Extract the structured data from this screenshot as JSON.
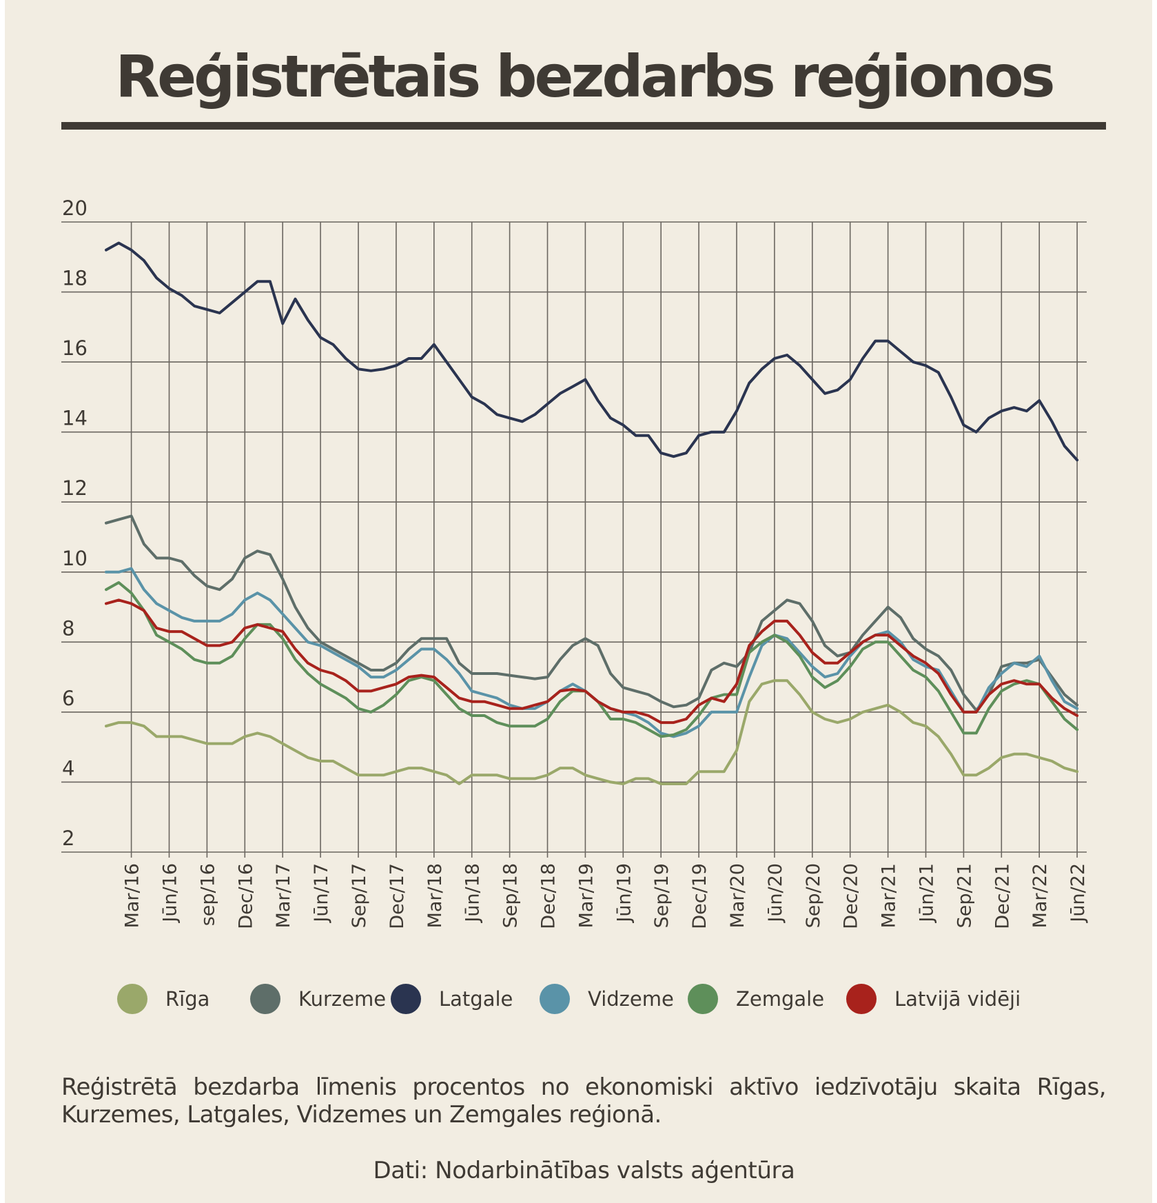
{
  "header": {
    "title": "Reģistrētais bezdarbs reģionos"
  },
  "caption": "Reģistrētā bezdarba līmenis procentos no ekonomiski aktīvo iedzīvotāju skaita Rīgas, Kurzemes, Latgales, Vidzemes un Zemgales reģionā.",
  "source": "Dati: Nodarbinātības valsts aģentūra",
  "colors": {
    "background": "#f2ede2",
    "text": "#3f3a34",
    "grid": "#6b6660"
  },
  "chart_data": {
    "type": "line",
    "title": "Reģistrētais bezdarbs reģionos",
    "xlabel": "",
    "ylabel": "",
    "ylim": [
      2,
      20
    ],
    "yticks": [
      2,
      4,
      6,
      8,
      10,
      12,
      14,
      16,
      18,
      20
    ],
    "grid": true,
    "legend_position": "bottom",
    "x": [
      "Jan/16",
      "Feb/16",
      "Mar/16",
      "Apr/16",
      "Mai/16",
      "Jūn/16",
      "Jūl/16",
      "Aug/16",
      "Sep/16",
      "Okt/16",
      "Nov/16",
      "Dec/16",
      "Jan/17",
      "Feb/17",
      "Mar/17",
      "Apr/17",
      "Mai/17",
      "Jūn/17",
      "Jūl/17",
      "Aug/17",
      "Sep/17",
      "Okt/17",
      "Nov/17",
      "Dec/17",
      "Jan/18",
      "Feb/18",
      "Mar/18",
      "Apr/18",
      "Mai/18",
      "Jūn/18",
      "Jūl/18",
      "Aug/18",
      "Sep/18",
      "Okt/18",
      "Nov/18",
      "Dec/18",
      "Jan/19",
      "Feb/19",
      "Mar/19",
      "Apr/19",
      "Mai/19",
      "Jūn/19",
      "Jūl/19",
      "Aug/19",
      "Sep/19",
      "Okt/19",
      "Nov/19",
      "Dec/19",
      "Jan/20",
      "Feb/20",
      "Mar/20",
      "Apr/20",
      "Mai/20",
      "Jūn/20",
      "Jūl/20",
      "Aug/20",
      "Sep/20",
      "Okt/20",
      "Nov/20",
      "Dec/20",
      "Jan/21",
      "Feb/21",
      "Mar/21",
      "Apr/21",
      "Mai/21",
      "Jūn/21",
      "Jūl/21",
      "Aug/21",
      "Sep/21",
      "Okt/21",
      "Nov/21",
      "Dec/21",
      "Jan/22",
      "Feb/22",
      "Mar/22",
      "Apr/22",
      "Mai/22",
      "Jūn/22"
    ],
    "x_tick_labels": [
      "Mar/16",
      "Jūn/16",
      "sep/16",
      "Dec/16",
      "Mar/17",
      "Jūn/17",
      "Sep/17",
      "Dec/17",
      "Mar/18",
      "Jūn/18",
      "Sep/18",
      "Dec/18",
      "Mar/19",
      "Jūn/19",
      "Sep/19",
      "Dec/19",
      "Mar/20",
      "Jūn/20",
      "Sep/20",
      "Dec/20",
      "Mar/21",
      "Jūn/21",
      "Sep/21",
      "Dec/21",
      "Mar/22",
      "Jūn/22"
    ],
    "series": [
      {
        "name": "Rīga",
        "color": "#9aa86a",
        "values": [
          5.6,
          5.7,
          5.7,
          5.6,
          5.3,
          5.3,
          5.3,
          5.2,
          5.1,
          5.1,
          5.1,
          5.3,
          5.4,
          5.3,
          5.1,
          4.9,
          4.7,
          4.6,
          4.6,
          4.4,
          4.2,
          4.2,
          4.2,
          4.3,
          4.4,
          4.4,
          4.3,
          4.2,
          3.95,
          4.2,
          4.2,
          4.2,
          4.1,
          4.1,
          4.1,
          4.2,
          4.4,
          4.4,
          4.2,
          4.1,
          4.0,
          3.95,
          4.1,
          4.1,
          3.95,
          3.95,
          3.95,
          4.3,
          4.3,
          4.3,
          4.9,
          6.3,
          6.8,
          6.9,
          6.9,
          6.5,
          6.0,
          5.8,
          5.7,
          5.8,
          6.0,
          6.1,
          6.2,
          6.0,
          5.7,
          5.6,
          5.3,
          4.8,
          4.2,
          4.2,
          4.4,
          4.7,
          4.8,
          4.8,
          4.7,
          4.6,
          4.4,
          4.3
        ]
      },
      {
        "name": "Kurzeme",
        "color": "#5e6e69",
        "values": [
          11.4,
          11.5,
          11.6,
          10.8,
          10.4,
          10.4,
          10.3,
          9.9,
          9.6,
          9.5,
          9.8,
          10.4,
          10.6,
          10.5,
          9.8,
          9.0,
          8.4,
          8.0,
          7.8,
          7.6,
          7.4,
          7.2,
          7.2,
          7.4,
          7.8,
          8.1,
          8.1,
          8.1,
          7.4,
          7.1,
          7.1,
          7.1,
          7.05,
          7.0,
          6.95,
          7.0,
          7.5,
          7.9,
          8.1,
          7.9,
          7.1,
          6.7,
          6.6,
          6.5,
          6.3,
          6.15,
          6.2,
          6.4,
          7.2,
          7.4,
          7.3,
          7.7,
          8.6,
          8.9,
          9.2,
          9.1,
          8.6,
          7.9,
          7.6,
          7.7,
          8.2,
          8.6,
          9.0,
          8.7,
          8.1,
          7.8,
          7.6,
          7.2,
          6.5,
          6.05,
          6.5,
          7.3,
          7.4,
          7.4,
          7.5,
          7.0,
          6.5,
          6.2
        ]
      },
      {
        "name": "Latgale",
        "color": "#2a3450",
        "values": [
          19.2,
          19.4,
          19.2,
          18.9,
          18.4,
          18.1,
          17.9,
          17.6,
          17.5,
          17.4,
          17.7,
          18.0,
          18.3,
          18.3,
          17.1,
          17.8,
          17.2,
          16.7,
          16.5,
          16.1,
          15.8,
          15.75,
          15.8,
          15.9,
          16.1,
          16.1,
          16.5,
          16.0,
          15.5,
          15.0,
          14.8,
          14.5,
          14.4,
          14.3,
          14.5,
          14.8,
          15.1,
          15.3,
          15.5,
          14.9,
          14.4,
          14.2,
          13.9,
          13.9,
          13.4,
          13.3,
          13.4,
          13.9,
          14.0,
          14.0,
          14.6,
          15.4,
          15.8,
          16.1,
          16.2,
          15.9,
          15.5,
          15.1,
          15.2,
          15.5,
          16.1,
          16.6,
          16.6,
          16.3,
          16.0,
          15.9,
          15.7,
          15.0,
          14.2,
          14.0,
          14.4,
          14.6,
          14.7,
          14.6,
          14.9,
          14.3,
          13.6,
          13.2
        ]
      },
      {
        "name": "Vidzeme",
        "color": "#5a93a8",
        "values": [
          10.0,
          10.0,
          10.1,
          9.5,
          9.1,
          8.9,
          8.7,
          8.6,
          8.6,
          8.6,
          8.8,
          9.2,
          9.4,
          9.2,
          8.8,
          8.4,
          8.0,
          7.9,
          7.7,
          7.5,
          7.3,
          7.0,
          7.0,
          7.2,
          7.5,
          7.8,
          7.8,
          7.5,
          7.1,
          6.6,
          6.5,
          6.4,
          6.2,
          6.1,
          6.1,
          6.3,
          6.6,
          6.8,
          6.6,
          6.3,
          6.1,
          6.0,
          5.9,
          5.7,
          5.4,
          5.3,
          5.4,
          5.6,
          6.0,
          6.0,
          6.0,
          7.0,
          7.9,
          8.2,
          8.1,
          7.7,
          7.3,
          7.0,
          7.1,
          7.6,
          8.0,
          8.2,
          8.3,
          8.0,
          7.5,
          7.3,
          7.2,
          6.6,
          6.0,
          6.0,
          6.7,
          7.1,
          7.4,
          7.3,
          7.6,
          6.9,
          6.3,
          6.1
        ]
      },
      {
        "name": "Zemgale",
        "color": "#5e8f5a",
        "values": [
          9.5,
          9.7,
          9.4,
          8.9,
          8.2,
          8.0,
          7.8,
          7.5,
          7.4,
          7.4,
          7.6,
          8.1,
          8.5,
          8.5,
          8.1,
          7.5,
          7.1,
          6.8,
          6.6,
          6.4,
          6.1,
          6.0,
          6.2,
          6.5,
          6.9,
          7.0,
          6.9,
          6.5,
          6.1,
          5.9,
          5.9,
          5.7,
          5.6,
          5.6,
          5.6,
          5.8,
          6.3,
          6.6,
          6.6,
          6.3,
          5.8,
          5.8,
          5.7,
          5.5,
          5.3,
          5.35,
          5.5,
          5.9,
          6.4,
          6.5,
          6.5,
          7.7,
          8.0,
          8.2,
          8.0,
          7.6,
          7.0,
          6.7,
          6.9,
          7.3,
          7.8,
          8.0,
          8.0,
          7.6,
          7.2,
          7.0,
          6.6,
          6.0,
          5.4,
          5.4,
          6.1,
          6.6,
          6.8,
          6.9,
          6.8,
          6.3,
          5.8,
          5.5
        ]
      },
      {
        "name": "Latvijā vidēji",
        "color": "#a8221c",
        "values": [
          9.1,
          9.2,
          9.1,
          8.9,
          8.4,
          8.3,
          8.3,
          8.1,
          7.9,
          7.9,
          8.0,
          8.4,
          8.5,
          8.4,
          8.3,
          7.8,
          7.4,
          7.2,
          7.1,
          6.9,
          6.6,
          6.6,
          6.7,
          6.8,
          7.0,
          7.05,
          7.0,
          6.7,
          6.4,
          6.3,
          6.3,
          6.2,
          6.1,
          6.1,
          6.2,
          6.3,
          6.6,
          6.65,
          6.6,
          6.3,
          6.1,
          6.0,
          6.0,
          5.9,
          5.7,
          5.7,
          5.8,
          6.2,
          6.4,
          6.3,
          6.8,
          7.9,
          8.3,
          8.6,
          8.6,
          8.2,
          7.7,
          7.4,
          7.4,
          7.7,
          8.0,
          8.2,
          8.2,
          7.9,
          7.6,
          7.4,
          7.1,
          6.5,
          6.0,
          6.0,
          6.5,
          6.8,
          6.9,
          6.8,
          6.8,
          6.4,
          6.1,
          5.9
        ]
      }
    ]
  }
}
